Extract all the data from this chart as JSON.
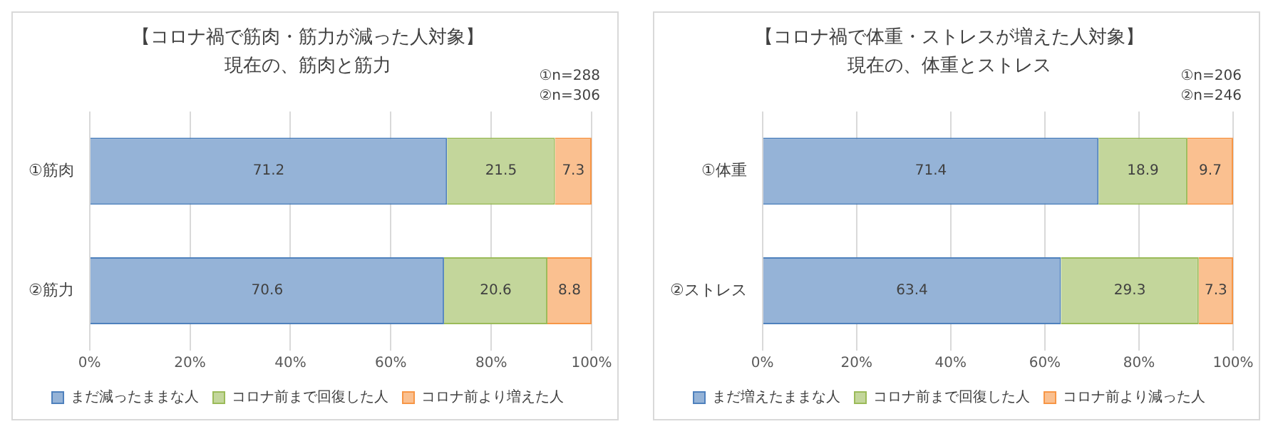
{
  "chart_data": [
    {
      "type": "bar",
      "orientation": "horizontal",
      "stacked": true,
      "title": "【コロナ禍で筋肉・筋力が減った人対象】",
      "subtitle": "現在の、筋肉と筋力",
      "annotations": [
        "①n=288",
        "②n=306"
      ],
      "categories": [
        "①筋肉",
        "②筋力"
      ],
      "series": [
        {
          "name": "まだ減ったままな人",
          "color": "#95b3d7",
          "values": [
            71.2,
            70.6
          ]
        },
        {
          "name": "コロナ前まで回復した人",
          "color": "#c3d69b",
          "values": [
            21.5,
            20.6
          ]
        },
        {
          "name": "コロナ前より増えた人",
          "color": "#fac090",
          "values": [
            7.3,
            8.8
          ]
        }
      ],
      "xlim": [
        0,
        100
      ],
      "xticks": [
        {
          "value": 0,
          "label": "0%"
        },
        {
          "value": 20,
          "label": "20%"
        },
        {
          "value": 40,
          "label": "40%"
        },
        {
          "value": 60,
          "label": "60%"
        },
        {
          "value": 80,
          "label": "80%"
        },
        {
          "value": 100,
          "label": "100%"
        }
      ],
      "grid": "x",
      "legend": "bottom",
      "data_labels": true
    },
    {
      "type": "bar",
      "orientation": "horizontal",
      "stacked": true,
      "title": "【コロナ禍で体重・ストレスが増えた人対象】",
      "subtitle": "現在の、体重とストレス",
      "annotations": [
        "①n=206",
        "②n=246"
      ],
      "categories": [
        "①体重",
        "②ストレス"
      ],
      "series": [
        {
          "name": "まだ増えたままな人",
          "color": "#95b3d7",
          "values": [
            71.4,
            63.4
          ]
        },
        {
          "name": "コロナ前まで回復した人",
          "color": "#c3d69b",
          "values": [
            18.9,
            29.3
          ]
        },
        {
          "name": "コロナ前より減った人",
          "color": "#fac090",
          "values": [
            9.7,
            7.3
          ]
        }
      ],
      "xlim": [
        0,
        100
      ],
      "xticks": [
        {
          "value": 0,
          "label": "0%"
        },
        {
          "value": 20,
          "label": "20%"
        },
        {
          "value": 40,
          "label": "40%"
        },
        {
          "value": 60,
          "label": "60%"
        },
        {
          "value": 80,
          "label": "80%"
        },
        {
          "value": 100,
          "label": "100%"
        }
      ],
      "grid": "x",
      "legend": "bottom",
      "data_labels": true
    }
  ]
}
